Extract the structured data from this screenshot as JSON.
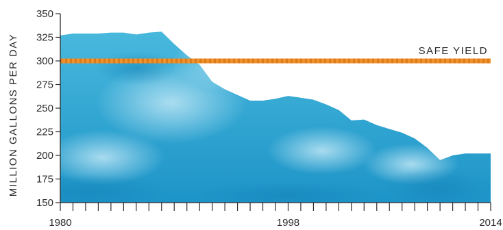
{
  "chart_data": {
    "type": "area",
    "title": "",
    "xlabel": "",
    "ylabel": "MILLION GALLONS PER DAY",
    "x": [
      1980,
      1981,
      1982,
      1983,
      1984,
      1985,
      1986,
      1987,
      1988,
      1989,
      1990,
      1991,
      1992,
      1993,
      1994,
      1995,
      1996,
      1997,
      1998,
      1999,
      2000,
      2001,
      2002,
      2003,
      2004,
      2005,
      2006,
      2007,
      2008,
      2009,
      2010,
      2011,
      2012,
      2013,
      2014
    ],
    "series": [
      {
        "values": [
          327,
          329,
          329,
          329,
          330,
          330,
          328,
          330,
          331,
          318,
          306,
          296,
          278,
          270,
          264,
          258,
          258,
          260,
          263,
          261,
          259,
          254,
          248,
          237,
          238,
          232,
          228,
          224,
          218,
          208,
          195,
          200,
          202,
          202,
          202
        ]
      }
    ],
    "xlim": [
      1980,
      2014
    ],
    "ylim": [
      150,
      350
    ],
    "x_tick_labels": [
      "1980",
      "1998",
      "2014"
    ],
    "y_tick_labels": [
      "150",
      "175",
      "200",
      "225",
      "250",
      "275",
      "300",
      "325",
      "350"
    ],
    "grid": false,
    "annotations": [
      {
        "label": "SAFE YIELD",
        "y": 300,
        "color": "#f0922a",
        "dash_color": "#d9731a"
      }
    ],
    "colors": {
      "area_top": "#48b8dd",
      "area_bottom": "#1d94c7",
      "area_light": "#8fd2ec",
      "axis": "#2b2b2b"
    }
  }
}
